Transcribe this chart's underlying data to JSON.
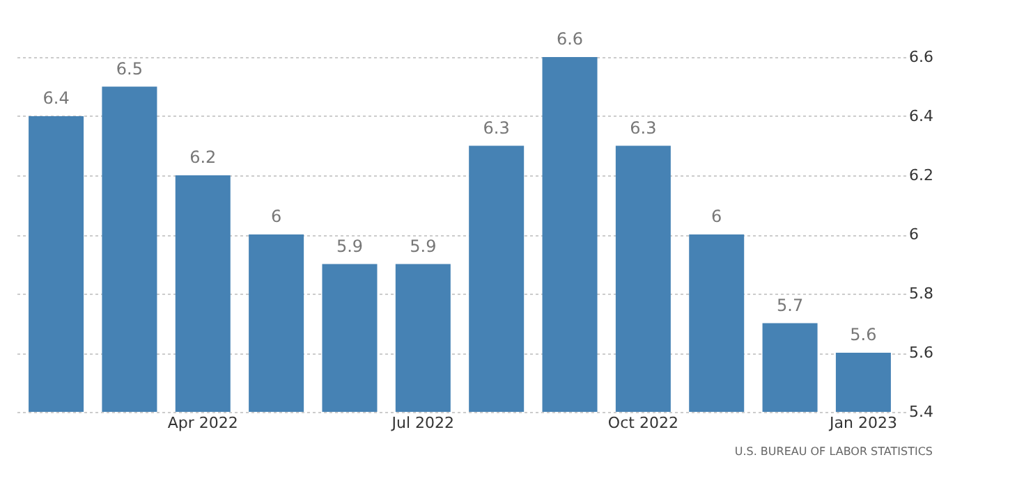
{
  "chart_data": {
    "type": "bar",
    "categories": [
      null,
      null,
      "Apr 2022",
      null,
      null,
      "Jul 2022",
      null,
      null,
      "Oct 2022",
      null,
      null,
      "Jan 2023"
    ],
    "values": [
      6.4,
      6.5,
      6.2,
      6,
      5.9,
      5.9,
      6.3,
      6.6,
      6.3,
      6,
      5.7,
      5.6
    ],
    "color": "#4682b4",
    "ylim": [
      5.4,
      6.6
    ],
    "yticks": [
      5.4,
      5.6,
      5.8,
      6,
      6.2,
      6.4,
      6.6
    ],
    "grid": "y",
    "data_labels": true,
    "annotations": [
      "U.S. BUREAU OF LABOR STATISTICS"
    ]
  }
}
